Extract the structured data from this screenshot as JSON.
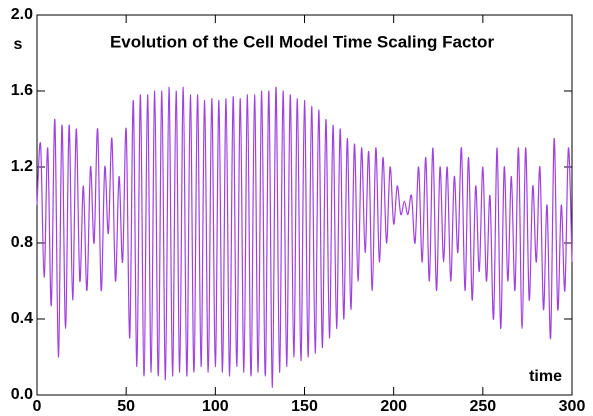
{
  "chart_data": {
    "type": "line",
    "title": "Evolution of the Cell Model Time Scaling Factor",
    "xlabel": "time",
    "ylabel": "s",
    "xlim": [
      0,
      300
    ],
    "ylim": [
      0,
      2
    ],
    "xticks": [
      0,
      50,
      100,
      150,
      200,
      250,
      300
    ],
    "yticks": [
      {
        "value": 0,
        "label": "0.0"
      },
      0.4,
      0.8,
      1.2,
      1.6,
      {
        "value": 2,
        "label": "2.0"
      }
    ],
    "x": [
      0,
      2,
      4,
      6,
      8,
      10,
      12,
      14,
      16,
      18,
      20,
      22,
      24,
      26,
      28,
      30,
      32,
      34,
      36,
      38,
      40,
      42,
      44,
      46,
      48,
      50,
      52,
      54,
      56,
      58,
      60,
      62,
      64,
      66,
      68,
      70,
      72,
      74,
      76,
      78,
      80,
      82,
      84,
      86,
      88,
      90,
      92,
      94,
      96,
      98,
      100,
      102,
      104,
      106,
      108,
      110,
      112,
      114,
      116,
      118,
      120,
      122,
      124,
      126,
      128,
      130,
      132,
      134,
      136,
      138,
      140,
      142,
      144,
      146,
      148,
      150,
      152,
      154,
      156,
      158,
      160,
      162,
      164,
      166,
      168,
      170,
      172,
      174,
      176,
      178,
      180,
      182,
      184,
      186,
      188,
      190,
      192,
      194,
      196,
      198,
      200,
      202,
      204,
      206,
      208,
      210,
      212,
      214,
      216,
      218,
      220,
      222,
      224,
      226,
      228,
      230,
      232,
      234,
      236,
      238,
      240,
      242,
      244,
      246,
      248,
      250,
      252,
      254,
      256,
      258,
      260,
      262,
      264,
      266,
      268,
      270,
      272,
      274,
      276,
      278,
      280,
      282,
      284,
      286,
      288,
      290,
      292,
      294,
      296,
      298,
      300
    ],
    "series": [
      {
        "color": "#a040e0",
        "values": [
          1.0,
          1.32,
          0.62,
          1.3,
          0.47,
          1.45,
          0.2,
          1.42,
          0.35,
          1.42,
          0.5,
          1.4,
          0.6,
          1.1,
          0.55,
          1.2,
          0.8,
          1.4,
          0.55,
          1.2,
          0.85,
          1.35,
          0.6,
          1.15,
          0.7,
          1.4,
          0.3,
          1.55,
          0.15,
          1.58,
          0.1,
          1.58,
          0.12,
          1.6,
          0.1,
          1.6,
          0.08,
          1.62,
          0.1,
          1.6,
          0.12,
          1.62,
          0.1,
          1.58,
          0.12,
          1.58,
          0.15,
          1.55,
          0.12,
          1.56,
          0.15,
          1.55,
          0.12,
          1.56,
          0.1,
          1.57,
          0.15,
          1.56,
          0.12,
          1.58,
          0.1,
          1.58,
          0.12,
          1.6,
          0.1,
          1.6,
          0.04,
          1.62,
          0.12,
          1.6,
          0.15,
          1.58,
          0.2,
          1.56,
          0.18,
          1.55,
          0.2,
          1.52,
          0.22,
          1.5,
          0.25,
          1.45,
          0.3,
          1.42,
          0.35,
          1.4,
          0.4,
          1.35,
          0.45,
          1.32,
          0.6,
          1.3,
          0.75,
          1.28,
          0.55,
          1.3,
          0.7,
          1.25,
          0.8,
          1.2,
          0.9,
          1.1,
          0.95,
          1.02,
          0.95,
          1.05,
          0.8,
          1.2,
          0.7,
          1.25,
          0.6,
          1.3,
          0.55,
          1.2,
          0.7,
          1.2,
          0.6,
          1.15,
          0.75,
          1.3,
          0.55,
          1.25,
          0.5,
          1.1,
          0.65,
          1.2,
          0.6,
          1.05,
          0.4,
          1.3,
          0.35,
          1.2,
          0.6,
          1.15,
          0.55,
          1.3,
          0.35,
          1.3,
          0.5,
          1.1,
          0.7,
          1.2,
          0.45,
          1.0,
          0.3,
          1.35,
          0.45,
          1.0,
          0.55,
          1.3,
          0.7
        ]
      }
    ]
  }
}
